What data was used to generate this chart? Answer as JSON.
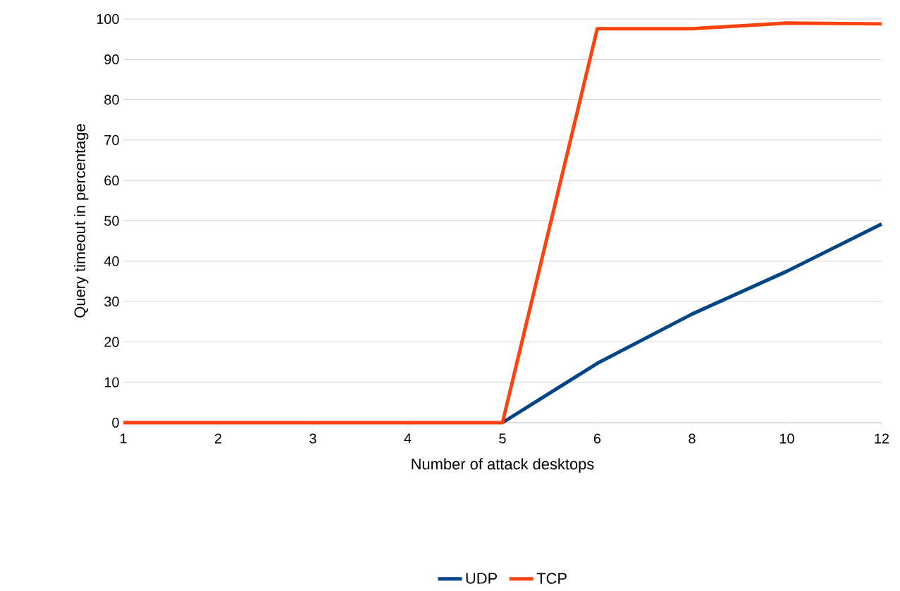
{
  "chart_data": {
    "type": "line",
    "xlabel": "Number of attack desktops",
    "ylabel": "Query timeout in percentage",
    "categories": [
      "1",
      "2",
      "3",
      "4",
      "5",
      "6",
      "8",
      "10",
      "12"
    ],
    "series": [
      {
        "name": "UDP",
        "color": "#004586",
        "values": [
          null,
          null,
          null,
          null,
          0,
          14.7,
          26.9,
          37.5,
          49.2
        ]
      },
      {
        "name": "TCP",
        "color": "#ff420e",
        "values": [
          0,
          0,
          0,
          0,
          0,
          97.6,
          97.6,
          99,
          98.8
        ]
      }
    ],
    "ylim": [
      0,
      100
    ],
    "yticks": [
      0,
      10,
      20,
      30,
      40,
      50,
      60,
      70,
      80,
      90,
      100
    ],
    "grid": "y",
    "legend": "bottom",
    "marker": "none",
    "line_style": "solid"
  }
}
